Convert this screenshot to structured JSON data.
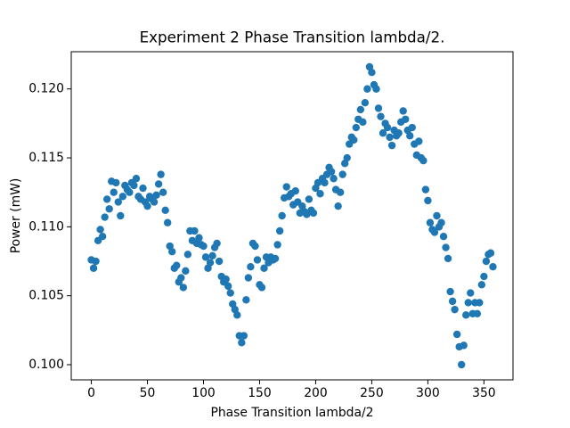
{
  "chart_data": {
    "type": "scatter",
    "title": "Experiment 2 Phase Transition lambda/2.",
    "x_label": "Phase Transition lambda/2",
    "y_label": "Power (mW)",
    "color": "#1f77b4",
    "x": [
      0,
      2,
      4,
      6,
      8,
      10,
      12,
      14,
      16,
      18,
      20,
      22,
      24,
      26,
      28,
      30,
      32,
      34,
      36,
      38,
      40,
      42,
      44,
      46,
      48,
      50,
      52,
      54,
      56,
      58,
      60,
      62,
      64,
      66,
      68,
      70,
      72,
      74,
      76,
      78,
      80,
      82,
      84,
      86,
      88,
      90,
      92,
      94,
      96,
      98,
      100,
      102,
      104,
      106,
      108,
      110,
      112,
      114,
      116,
      118,
      120,
      122,
      124,
      126,
      128,
      130,
      132,
      134,
      136,
      138,
      140,
      142,
      144,
      146,
      148,
      150,
      152,
      154,
      156,
      158,
      160,
      162,
      164,
      166,
      168,
      170,
      172,
      174,
      176,
      178,
      180,
      182,
      184,
      186,
      188,
      190,
      192,
      194,
      196,
      198,
      200,
      202,
      204,
      206,
      208,
      210,
      212,
      214,
      216,
      218,
      220,
      222,
      224,
      226,
      228,
      230,
      232,
      234,
      236,
      238,
      240,
      242,
      244,
      246,
      248,
      250,
      252,
      254,
      256,
      258,
      260,
      262,
      264,
      266,
      268,
      270,
      272,
      274,
      276,
      278,
      280,
      282,
      284,
      286,
      288,
      290,
      292,
      294,
      296,
      298,
      300,
      302,
      304,
      306,
      308,
      310,
      312,
      314,
      316,
      318,
      320,
      322,
      324,
      326,
      328,
      330,
      332,
      334,
      336,
      338,
      340,
      342,
      344,
      346,
      348,
      350,
      352,
      354,
      356,
      358
    ],
    "values": [
      0.1076,
      0.107,
      0.1075,
      0.109,
      0.1098,
      0.1093,
      0.1107,
      0.112,
      0.1113,
      0.1133,
      0.1125,
      0.1132,
      0.1118,
      0.1108,
      0.1122,
      0.113,
      0.1127,
      0.1125,
      0.1132,
      0.113,
      0.1135,
      0.1122,
      0.112,
      0.1128,
      0.1118,
      0.1115,
      0.1122,
      0.112,
      0.1118,
      0.1123,
      0.1131,
      0.1138,
      0.1125,
      0.1112,
      0.1103,
      0.1086,
      0.1082,
      0.107,
      0.1072,
      0.106,
      0.1063,
      0.1056,
      0.1068,
      0.108,
      0.1097,
      0.109,
      0.1097,
      0.1088,
      0.1092,
      0.1087,
      0.1086,
      0.1078,
      0.107,
      0.1074,
      0.1079,
      0.1085,
      0.1088,
      0.1075,
      0.1064,
      0.106,
      0.1062,
      0.1057,
      0.1052,
      0.1044,
      0.104,
      0.1036,
      0.1021,
      0.1016,
      0.1021,
      0.1047,
      0.1063,
      0.1071,
      0.1088,
      0.1086,
      0.1076,
      0.1058,
      0.1056,
      0.107,
      0.1078,
      0.1074,
      0.1078,
      0.1076,
      0.1077,
      0.1087,
      0.1097,
      0.1108,
      0.1121,
      0.1129,
      0.1122,
      0.1124,
      0.1116,
      0.1126,
      0.1118,
      0.111,
      0.1115,
      0.1111,
      0.1109,
      0.112,
      0.1112,
      0.111,
      0.1128,
      0.1132,
      0.1124,
      0.1135,
      0.1132,
      0.1138,
      0.1143,
      0.114,
      0.1135,
      0.1127,
      0.1115,
      0.1125,
      0.1138,
      0.1146,
      0.115,
      0.116,
      0.1165,
      0.1163,
      0.1172,
      0.1178,
      0.1185,
      0.1176,
      0.119,
      0.12,
      0.1216,
      0.1212,
      0.1203,
      0.12,
      0.1186,
      0.118,
      0.1168,
      0.1175,
      0.1172,
      0.1165,
      0.1159,
      0.117,
      0.1166,
      0.1168,
      0.1176,
      0.1184,
      0.1178,
      0.117,
      0.1166,
      0.1172,
      0.116,
      0.1152,
      0.1162,
      0.115,
      0.1148,
      0.1127,
      0.1119,
      0.1103,
      0.1098,
      0.1096,
      0.1108,
      0.11,
      0.1103,
      0.1093,
      0.1085,
      0.1077,
      0.1053,
      0.1046,
      0.104,
      0.1022,
      0.1013,
      0.1,
      0.1014,
      0.1036,
      0.1045,
      0.1052,
      0.1037,
      0.1045,
      0.1037,
      0.1045,
      0.1058,
      0.1064,
      0.1075,
      0.108,
      0.1081,
      0.1071
    ],
    "xlim": [
      -17.9,
      375.9
    ],
    "ylim": [
      0.0989,
      0.1227
    ],
    "xticks": [
      0,
      50,
      100,
      150,
      200,
      250,
      300,
      350
    ],
    "yticks": [
      {
        "value": 0.1,
        "label": "0.100"
      },
      {
        "value": 0.105,
        "label": "0.105"
      },
      {
        "value": 0.11,
        "label": "0.110"
      },
      {
        "value": 0.115,
        "label": "0.115"
      },
      {
        "value": 0.12,
        "label": "0.120"
      }
    ]
  }
}
